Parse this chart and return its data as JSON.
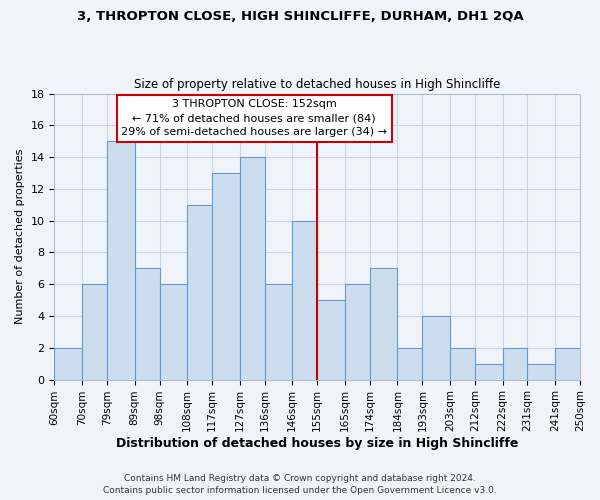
{
  "title": "3, THROPTON CLOSE, HIGH SHINCLIFFE, DURHAM, DH1 2QA",
  "subtitle": "Size of property relative to detached houses in High Shincliffe",
  "xlabel": "Distribution of detached houses by size in High Shincliffe",
  "ylabel": "Number of detached properties",
  "footnote1": "Contains HM Land Registry data © Crown copyright and database right 2024.",
  "footnote2": "Contains public sector information licensed under the Open Government Licence v3.0.",
  "bin_labels": [
    "60sqm",
    "70sqm",
    "79sqm",
    "89sqm",
    "98sqm",
    "108sqm",
    "117sqm",
    "127sqm",
    "136sqm",
    "146sqm",
    "155sqm",
    "165sqm",
    "174sqm",
    "184sqm",
    "193sqm",
    "203sqm",
    "212sqm",
    "222sqm",
    "231sqm",
    "241sqm",
    "250sqm"
  ],
  "bin_edges": [
    60,
    70,
    79,
    89,
    98,
    108,
    117,
    127,
    136,
    146,
    155,
    165,
    174,
    184,
    193,
    203,
    212,
    222,
    231,
    241,
    250
  ],
  "bar_heights": [
    2,
    6,
    15,
    7,
    6,
    11,
    13,
    14,
    6,
    10,
    5,
    6,
    7,
    2,
    4,
    2,
    1,
    2,
    1,
    2
  ],
  "bar_color": "#ccddf0",
  "bar_edge_color": "#6699cc",
  "property_line_x": 155,
  "property_line_color": "#cc0000",
  "annotation_title": "3 THROPTON CLOSE: 152sqm",
  "annotation_line1": "← 71% of detached houses are smaller (84)",
  "annotation_line2": "29% of semi-detached houses are larger (34) →",
  "annotation_box_color": "#ffffff",
  "annotation_box_edge": "#cc0000",
  "ylim": [
    0,
    18
  ],
  "yticks": [
    0,
    2,
    4,
    6,
    8,
    10,
    12,
    14,
    16,
    18
  ],
  "background_color": "#f0f4fa",
  "grid_color": "#c8d4e8"
}
